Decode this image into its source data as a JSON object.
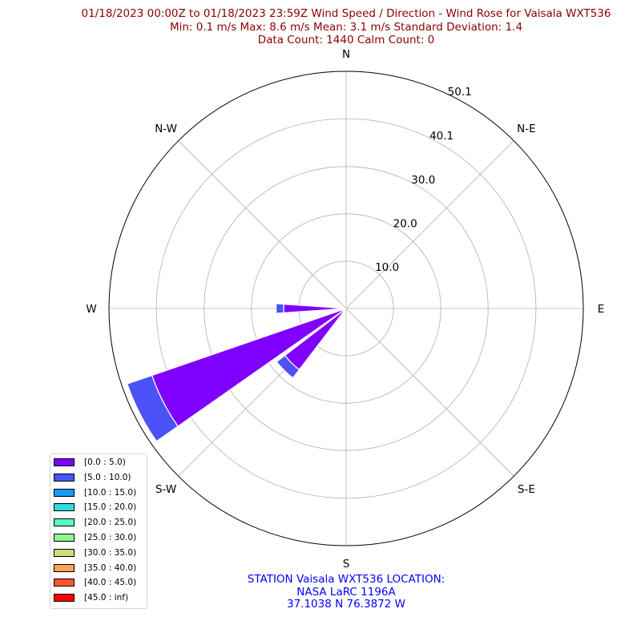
{
  "header": {
    "title_line1": "01/18/2023 00:00Z to 01/18/2023 23:59Z Wind Speed / Direction - Wind Rose for Vaisala WXT536",
    "title_line2": "Min: 0.1 m/s   Max: 8.6 m/s   Mean: 3.1 m/s  Standard Deviation: 1.4",
    "title_line3": "Data Count: 1440  Calm Count:  0"
  },
  "footer": {
    "line1": "STATION Vaisala WXT536 LOCATION:",
    "line2": "NASA LaRC 1196A",
    "line3": "37.1038 N 76.3872 W"
  },
  "chart_data": {
    "type": "windrose",
    "direction_labels": [
      "N",
      "N-E",
      "E",
      "S-E",
      "S",
      "S-W",
      "W",
      "N-W"
    ],
    "radial_ticks": [
      "10.0",
      "20.0",
      "30.0",
      "40.1",
      "50.1"
    ],
    "radial_max": 50.1,
    "grid": true,
    "legend_position": "lower-left",
    "legend": [
      {
        "label": "[0.0 : 5.0)",
        "color": "#8000ff"
      },
      {
        "label": "[5.0 : 10.0)",
        "color": "#4a52f8"
      },
      {
        "label": "[10.0 : 15.0)",
        "color": "#169bf0"
      },
      {
        "label": "[15.0 : 20.0)",
        "color": "#2adddd"
      },
      {
        "label": "[20.0 : 25.0)",
        "color": "#5cfbc0"
      },
      {
        "label": "[25.0 : 30.0)",
        "color": "#8ef99a"
      },
      {
        "label": "[30.0 : 35.0)",
        "color": "#ccdd7e"
      },
      {
        "label": "[35.0 : 40.0)",
        "color": "#ffa256"
      },
      {
        "label": "[40.0 : 45.0)",
        "color": "#ff5530"
      },
      {
        "label": "[45.0 : inf)",
        "color": "#ff0000"
      }
    ],
    "bars": [
      {
        "direction_deg": 270,
        "width_deg": 8,
        "segments": [
          {
            "bin": 0,
            "value": 13.2
          },
          {
            "bin": 1,
            "value": 1.6
          }
        ]
      },
      {
        "direction_deg": 263,
        "width_deg": 6,
        "segments": [
          {
            "bin": 0,
            "value": 2.4
          }
        ]
      },
      {
        "direction_deg": 243,
        "width_deg": 16,
        "segments": [
          {
            "bin": 0,
            "value": 43.4
          },
          {
            "bin": 1,
            "value": 5.5
          }
        ]
      },
      {
        "direction_deg": 225,
        "width_deg": 15,
        "segments": [
          {
            "bin": 0,
            "value": 16.3
          },
          {
            "bin": 1,
            "value": 2.2
          }
        ]
      }
    ]
  }
}
